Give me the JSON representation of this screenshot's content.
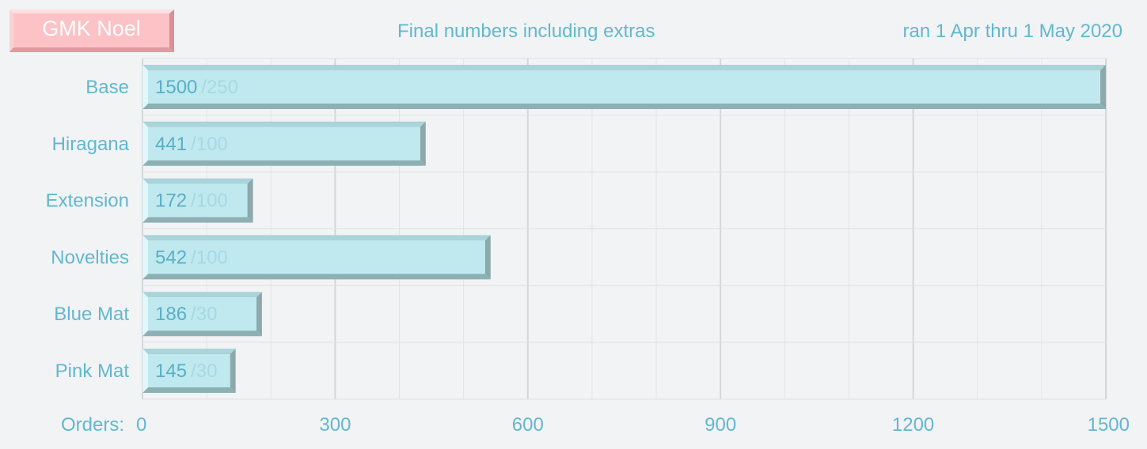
{
  "header": {
    "badge": "GMK Noel",
    "subtitle": "Final numbers including extras",
    "date_range": "ran 1 Apr thru 1 May 2020"
  },
  "colors": {
    "bar_face": "#bfe9ef",
    "bar_top": "#a8d4da",
    "bar_bottom": "#8db0b4",
    "bar_right": "#8ca9ac",
    "bar_left": "#e2f7fa",
    "badge": "#fcc2c6",
    "text": "#62b8cd"
  },
  "chart_data": {
    "type": "bar",
    "orientation": "horizontal",
    "title": "Final numbers including extras",
    "xlabel": "Orders:",
    "categories": [
      "Base",
      "Hiragana",
      "Extension",
      "Novelties",
      "Blue Mat",
      "Pink Mat"
    ],
    "values": [
      1500,
      441,
      172,
      542,
      186,
      145
    ],
    "minimums": [
      "/250",
      "/100",
      "/100",
      "/100",
      "/30",
      "/30"
    ],
    "xlim": [
      0,
      1500
    ],
    "x_ticks": [
      0,
      300,
      600,
      900,
      1200,
      1500
    ],
    "x_minor_step": 100,
    "grid": true
  }
}
